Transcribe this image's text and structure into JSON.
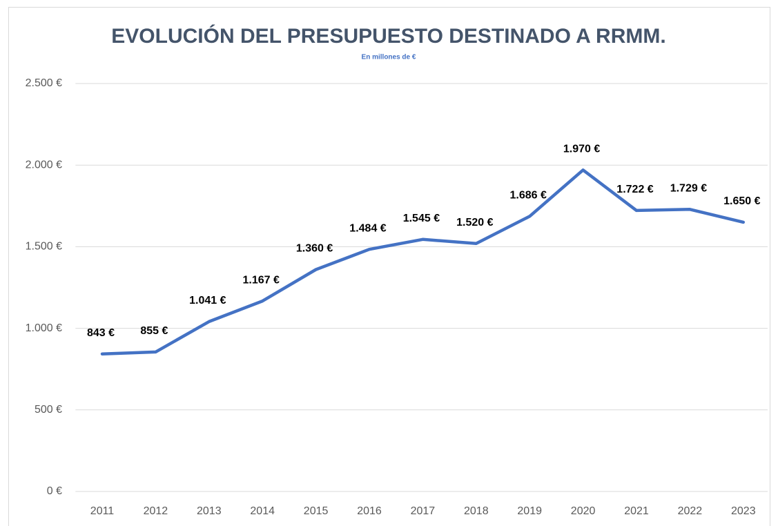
{
  "chart_data": {
    "type": "line",
    "title": "EVOLUCIÓN DEL PRESUPUESTO DESTINADO A RRMM.",
    "subtitle": "En millones de €",
    "categories": [
      "2011",
      "2012",
      "2013",
      "2014",
      "2015",
      "2016",
      "2017",
      "2018",
      "2019",
      "2020",
      "2021",
      "2022",
      "2023"
    ],
    "values": [
      843,
      855,
      1041,
      1167,
      1360,
      1484,
      1545,
      1520,
      1686,
      1970,
      1722,
      1729,
      1650
    ],
    "value_labels": [
      "843 €",
      "855 €",
      "1.041 €",
      "1.167 €",
      "1.360 €",
      "1.484 €",
      "1.545 €",
      "1.520 €",
      "1.686 €",
      "1.970 €",
      "1.722 €",
      "1.729 €",
      "1.650 €"
    ],
    "color": "#4472c4",
    "ylim": [
      0,
      2500
    ],
    "yticks": [
      {
        "value": 0,
        "label": "0 €"
      },
      {
        "value": 500,
        "label": "500 €"
      },
      {
        "value": 1000,
        "label": "1.000 €"
      },
      {
        "value": 1500,
        "label": "1.500 €"
      },
      {
        "value": 2000,
        "label": "2.000 €"
      },
      {
        "value": 2500,
        "label": "2.500 €"
      }
    ],
    "grid": true
  }
}
